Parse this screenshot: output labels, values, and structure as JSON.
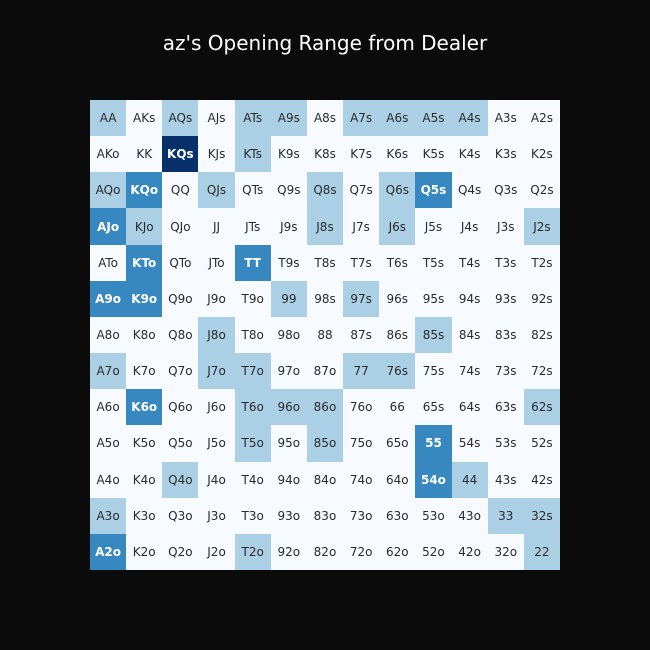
{
  "title": "az's Opening Range from Dealer",
  "chart_data": {
    "type": "heatmap",
    "colors": {
      "0": "#f7fbff",
      "1": "#abd0e6",
      "2": "#3787c0",
      "3": "#08306b"
    },
    "rows": [
      [
        [
          "AA",
          1
        ],
        [
          "AKs",
          0
        ],
        [
          "AQs",
          1
        ],
        [
          "AJs",
          0
        ],
        [
          "ATs",
          1
        ],
        [
          "A9s",
          1
        ],
        [
          "A8s",
          0
        ],
        [
          "A7s",
          1
        ],
        [
          "A6s",
          1
        ],
        [
          "A5s",
          1
        ],
        [
          "A4s",
          1
        ],
        [
          "A3s",
          0
        ],
        [
          "A2s",
          0
        ]
      ],
      [
        [
          "AKo",
          0
        ],
        [
          "KK",
          0
        ],
        [
          "KQs",
          3
        ],
        [
          "KJs",
          0
        ],
        [
          "KTs",
          1
        ],
        [
          "K9s",
          0
        ],
        [
          "K8s",
          0
        ],
        [
          "K7s",
          0
        ],
        [
          "K6s",
          0
        ],
        [
          "K5s",
          0
        ],
        [
          "K4s",
          0
        ],
        [
          "K3s",
          0
        ],
        [
          "K2s",
          0
        ]
      ],
      [
        [
          "AQo",
          1
        ],
        [
          "KQo",
          2
        ],
        [
          "QQ",
          0
        ],
        [
          "QJs",
          1
        ],
        [
          "QTs",
          0
        ],
        [
          "Q9s",
          0
        ],
        [
          "Q8s",
          1
        ],
        [
          "Q7s",
          0
        ],
        [
          "Q6s",
          1
        ],
        [
          "Q5s",
          2
        ],
        [
          "Q4s",
          0
        ],
        [
          "Q3s",
          0
        ],
        [
          "Q2s",
          0
        ]
      ],
      [
        [
          "AJo",
          2
        ],
        [
          "KJo",
          1
        ],
        [
          "QJo",
          0
        ],
        [
          "JJ",
          0
        ],
        [
          "JTs",
          0
        ],
        [
          "J9s",
          0
        ],
        [
          "J8s",
          1
        ],
        [
          "J7s",
          0
        ],
        [
          "J6s",
          1
        ],
        [
          "J5s",
          0
        ],
        [
          "J4s",
          0
        ],
        [
          "J3s",
          0
        ],
        [
          "J2s",
          1
        ]
      ],
      [
        [
          "ATo",
          0
        ],
        [
          "KTo",
          2
        ],
        [
          "QTo",
          0
        ],
        [
          "JTo",
          0
        ],
        [
          "TT",
          2
        ],
        [
          "T9s",
          0
        ],
        [
          "T8s",
          0
        ],
        [
          "T7s",
          0
        ],
        [
          "T6s",
          0
        ],
        [
          "T5s",
          0
        ],
        [
          "T4s",
          0
        ],
        [
          "T3s",
          0
        ],
        [
          "T2s",
          0
        ]
      ],
      [
        [
          "A9o",
          2
        ],
        [
          "K9o",
          2
        ],
        [
          "Q9o",
          0
        ],
        [
          "J9o",
          0
        ],
        [
          "T9o",
          0
        ],
        [
          "99",
          1
        ],
        [
          "98s",
          0
        ],
        [
          "97s",
          1
        ],
        [
          "96s",
          0
        ],
        [
          "95s",
          0
        ],
        [
          "94s",
          0
        ],
        [
          "93s",
          0
        ],
        [
          "92s",
          0
        ]
      ],
      [
        [
          "A8o",
          0
        ],
        [
          "K8o",
          0
        ],
        [
          "Q8o",
          0
        ],
        [
          "J8o",
          1
        ],
        [
          "T8o",
          0
        ],
        [
          "98o",
          0
        ],
        [
          "88",
          0
        ],
        [
          "87s",
          0
        ],
        [
          "86s",
          0
        ],
        [
          "85s",
          1
        ],
        [
          "84s",
          0
        ],
        [
          "83s",
          0
        ],
        [
          "82s",
          0
        ]
      ],
      [
        [
          "A7o",
          1
        ],
        [
          "K7o",
          0
        ],
        [
          "Q7o",
          0
        ],
        [
          "J7o",
          1
        ],
        [
          "T7o",
          1
        ],
        [
          "97o",
          0
        ],
        [
          "87o",
          0
        ],
        [
          "77",
          1
        ],
        [
          "76s",
          1
        ],
        [
          "75s",
          0
        ],
        [
          "74s",
          0
        ],
        [
          "73s",
          0
        ],
        [
          "72s",
          0
        ]
      ],
      [
        [
          "A6o",
          0
        ],
        [
          "K6o",
          2
        ],
        [
          "Q6o",
          0
        ],
        [
          "J6o",
          0
        ],
        [
          "T6o",
          1
        ],
        [
          "96o",
          1
        ],
        [
          "86o",
          1
        ],
        [
          "76o",
          0
        ],
        [
          "66",
          0
        ],
        [
          "65s",
          0
        ],
        [
          "64s",
          0
        ],
        [
          "63s",
          0
        ],
        [
          "62s",
          1
        ]
      ],
      [
        [
          "A5o",
          0
        ],
        [
          "K5o",
          0
        ],
        [
          "Q5o",
          0
        ],
        [
          "J5o",
          0
        ],
        [
          "T5o",
          1
        ],
        [
          "95o",
          0
        ],
        [
          "85o",
          1
        ],
        [
          "75o",
          0
        ],
        [
          "65o",
          0
        ],
        [
          "55",
          2
        ],
        [
          "54s",
          0
        ],
        [
          "53s",
          0
        ],
        [
          "52s",
          0
        ]
      ],
      [
        [
          "A4o",
          0
        ],
        [
          "K4o",
          0
        ],
        [
          "Q4o",
          1
        ],
        [
          "J4o",
          0
        ],
        [
          "T4o",
          0
        ],
        [
          "94o",
          0
        ],
        [
          "84o",
          0
        ],
        [
          "74o",
          0
        ],
        [
          "64o",
          0
        ],
        [
          "54o",
          2
        ],
        [
          "44",
          1
        ],
        [
          "43s",
          0
        ],
        [
          "42s",
          0
        ]
      ],
      [
        [
          "A3o",
          1
        ],
        [
          "K3o",
          0
        ],
        [
          "Q3o",
          0
        ],
        [
          "J3o",
          0
        ],
        [
          "T3o",
          0
        ],
        [
          "93o",
          0
        ],
        [
          "83o",
          0
        ],
        [
          "73o",
          0
        ],
        [
          "63o",
          0
        ],
        [
          "53o",
          0
        ],
        [
          "43o",
          0
        ],
        [
          "33",
          1
        ],
        [
          "32s",
          1
        ]
      ],
      [
        [
          "A2o",
          2
        ],
        [
          "K2o",
          0
        ],
        [
          "Q2o",
          0
        ],
        [
          "J2o",
          0
        ],
        [
          "T2o",
          1
        ],
        [
          "92o",
          0
        ],
        [
          "82o",
          0
        ],
        [
          "72o",
          0
        ],
        [
          "62o",
          0
        ],
        [
          "52o",
          0
        ],
        [
          "42o",
          0
        ],
        [
          "32o",
          0
        ],
        [
          "22",
          1
        ]
      ]
    ]
  }
}
